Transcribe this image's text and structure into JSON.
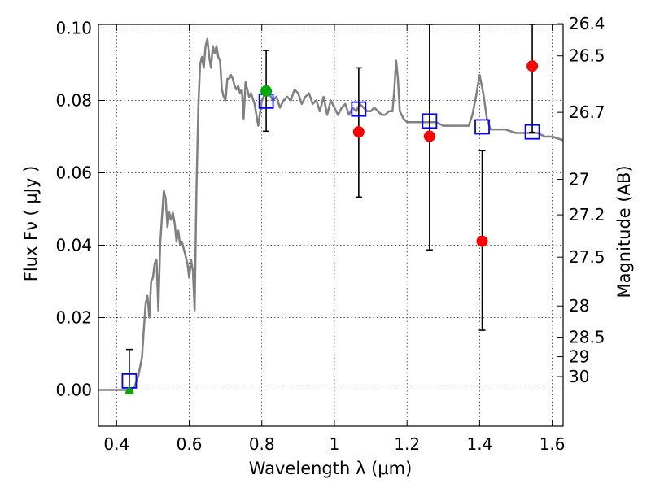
{
  "chart_data": {
    "type": "scatter",
    "xlabel": "Wavelength  λ (μm)",
    "ylabel": "Flux  Fν  ( μJy )",
    "y2label": "Magnitude (AB)",
    "xlim": [
      0.35,
      1.63
    ],
    "ylim": [
      -0.01,
      0.101
    ],
    "grid": true,
    "x_ticks": [
      0.4,
      0.6,
      0.8,
      1.0,
      1.2,
      1.4,
      1.6
    ],
    "x_tick_labels": [
      "0.4",
      "0.6",
      "0.8",
      "1",
      "1.2",
      "1.4",
      "1.6"
    ],
    "y_ticks": [
      0.0,
      0.02,
      0.04,
      0.06,
      0.08,
      0.1
    ],
    "y_tick_labels": [
      "0.00",
      "0.02",
      "0.04",
      "0.06",
      "0.08",
      "0.10"
    ],
    "y2_ticks": [
      {
        "label": "26.4",
        "flux": 0.1012
      },
      {
        "label": "26.5",
        "flux": 0.0923
      },
      {
        "label": "26.7",
        "flux": 0.0767
      },
      {
        "label": "27",
        "flux": 0.0582
      },
      {
        "label": "27.2",
        "flux": 0.0484
      },
      {
        "label": "27.5",
        "flux": 0.0367
      },
      {
        "label": "28",
        "flux": 0.0232
      },
      {
        "label": "28.5",
        "flux": 0.0146
      },
      {
        "label": "29",
        "flux": 0.0092
      },
      {
        "label": "30",
        "flux": 0.0037
      }
    ],
    "series": [
      {
        "type": "line",
        "color": "#808080",
        "points": [
          [
            0.35,
            0.0
          ],
          [
            0.44,
            0.0
          ],
          [
            0.45,
            0.001
          ],
          [
            0.46,
            0.004
          ],
          [
            0.47,
            0.009
          ],
          [
            0.475,
            0.017
          ],
          [
            0.48,
            0.024
          ],
          [
            0.485,
            0.026
          ],
          [
            0.49,
            0.02
          ],
          [
            0.495,
            0.03
          ],
          [
            0.5,
            0.031
          ],
          [
            0.505,
            0.035
          ],
          [
            0.51,
            0.036
          ],
          [
            0.515,
            0.022
          ],
          [
            0.52,
            0.04
          ],
          [
            0.525,
            0.048
          ],
          [
            0.53,
            0.055
          ],
          [
            0.535,
            0.053
          ],
          [
            0.54,
            0.045
          ],
          [
            0.545,
            0.049
          ],
          [
            0.55,
            0.047
          ],
          [
            0.555,
            0.049
          ],
          [
            0.56,
            0.046
          ],
          [
            0.565,
            0.041
          ],
          [
            0.57,
            0.044
          ],
          [
            0.575,
            0.04
          ],
          [
            0.58,
            0.041
          ],
          [
            0.585,
            0.039
          ],
          [
            0.59,
            0.037
          ],
          [
            0.595,
            0.035
          ],
          [
            0.6,
            0.031
          ],
          [
            0.605,
            0.036
          ],
          [
            0.61,
            0.033
          ],
          [
            0.615,
            0.022
          ],
          [
            0.62,
            0.055
          ],
          [
            0.625,
            0.078
          ],
          [
            0.63,
            0.09
          ],
          [
            0.635,
            0.092
          ],
          [
            0.64,
            0.089
          ],
          [
            0.645,
            0.095
          ],
          [
            0.65,
            0.097
          ],
          [
            0.655,
            0.092
          ],
          [
            0.66,
            0.089
          ],
          [
            0.665,
            0.095
          ],
          [
            0.67,
            0.093
          ],
          [
            0.675,
            0.095
          ],
          [
            0.68,
            0.092
          ],
          [
            0.685,
            0.091
          ],
          [
            0.69,
            0.083
          ],
          [
            0.695,
            0.081
          ],
          [
            0.7,
            0.08
          ],
          [
            0.705,
            0.086
          ],
          [
            0.71,
            0.086
          ],
          [
            0.715,
            0.087
          ],
          [
            0.72,
            0.086
          ],
          [
            0.725,
            0.084
          ],
          [
            0.73,
            0.083
          ],
          [
            0.735,
            0.084
          ],
          [
            0.74,
            0.082
          ],
          [
            0.745,
            0.083
          ],
          [
            0.75,
            0.075
          ],
          [
            0.755,
            0.085
          ],
          [
            0.76,
            0.083
          ],
          [
            0.765,
            0.081
          ],
          [
            0.77,
            0.082
          ],
          [
            0.78,
            0.079
          ],
          [
            0.785,
            0.076
          ],
          [
            0.79,
            0.073
          ],
          [
            0.8,
            0.08
          ],
          [
            0.81,
            0.082
          ],
          [
            0.82,
            0.082
          ],
          [
            0.83,
            0.08
          ],
          [
            0.84,
            0.081
          ],
          [
            0.85,
            0.078
          ],
          [
            0.86,
            0.08
          ],
          [
            0.87,
            0.081
          ],
          [
            0.88,
            0.08
          ],
          [
            0.89,
            0.083
          ],
          [
            0.9,
            0.082
          ],
          [
            0.91,
            0.079
          ],
          [
            0.92,
            0.081
          ],
          [
            0.93,
            0.082
          ],
          [
            0.94,
            0.079
          ],
          [
            0.95,
            0.08
          ],
          [
            0.96,
            0.077
          ],
          [
            0.97,
            0.081
          ],
          [
            0.98,
            0.076
          ],
          [
            0.99,
            0.08
          ],
          [
            1.0,
            0.078
          ],
          [
            1.01,
            0.076
          ],
          [
            1.02,
            0.078
          ],
          [
            1.03,
            0.079
          ],
          [
            1.04,
            0.076
          ],
          [
            1.05,
            0.078
          ],
          [
            1.06,
            0.077
          ],
          [
            1.07,
            0.079
          ],
          [
            1.08,
            0.078
          ],
          [
            1.09,
            0.077
          ],
          [
            1.1,
            0.077
          ],
          [
            1.11,
            0.078
          ],
          [
            1.12,
            0.077
          ],
          [
            1.13,
            0.076
          ],
          [
            1.14,
            0.076
          ],
          [
            1.15,
            0.077
          ],
          [
            1.16,
            0.077
          ],
          [
            1.165,
            0.083
          ],
          [
            1.17,
            0.091
          ],
          [
            1.175,
            0.086
          ],
          [
            1.18,
            0.077
          ],
          [
            1.19,
            0.075
          ],
          [
            1.2,
            0.074
          ],
          [
            1.22,
            0.074
          ],
          [
            1.24,
            0.074
          ],
          [
            1.26,
            0.074
          ],
          [
            1.28,
            0.074
          ],
          [
            1.3,
            0.073
          ],
          [
            1.32,
            0.073
          ],
          [
            1.34,
            0.073
          ],
          [
            1.36,
            0.073
          ],
          [
            1.37,
            0.073
          ],
          [
            1.38,
            0.076
          ],
          [
            1.39,
            0.081
          ],
          [
            1.4,
            0.087
          ],
          [
            1.41,
            0.082
          ],
          [
            1.42,
            0.075
          ],
          [
            1.43,
            0.072
          ],
          [
            1.45,
            0.072
          ],
          [
            1.47,
            0.072
          ],
          [
            1.5,
            0.071
          ],
          [
            1.53,
            0.071
          ],
          [
            1.56,
            0.071
          ],
          [
            1.58,
            0.07
          ],
          [
            1.6,
            0.07
          ],
          [
            1.63,
            0.069
          ]
        ]
      },
      {
        "type": "squares",
        "color": "#0000ff",
        "points": [
          [
            0.435,
            0.0025
          ],
          [
            0.812,
            0.0798
          ],
          [
            1.067,
            0.0776
          ],
          [
            1.262,
            0.0743
          ],
          [
            1.407,
            0.0727
          ],
          [
            1.545,
            0.0713
          ]
        ]
      },
      {
        "type": "circles",
        "color": "#ff0000",
        "points": [
          [
            1.067,
            0.0713
          ],
          [
            1.262,
            0.0701
          ],
          [
            1.407,
            0.0411
          ],
          [
            1.545,
            0.0895
          ]
        ]
      },
      {
        "type": "circles",
        "color": "#00aa00",
        "points": [
          [
            0.812,
            0.0826
          ]
        ]
      },
      {
        "type": "triangle",
        "color": "#00aa00",
        "points": [
          [
            0.435,
            0.0
          ]
        ]
      }
    ],
    "errorbars": [
      {
        "x": 0.435,
        "y_low": 0.0,
        "y_high": 0.0112
      },
      {
        "x": 0.812,
        "y_low": 0.0715,
        "y_high": 0.0938
      },
      {
        "x": 1.067,
        "y_low": 0.0533,
        "y_high": 0.089
      },
      {
        "x": 1.262,
        "y_low": 0.0387,
        "y_high": 0.101
      },
      {
        "x": 1.407,
        "y_low": 0.0165,
        "y_high": 0.0661
      },
      {
        "x": 1.545,
        "y_low": 0.0712,
        "y_high": 0.101
      }
    ]
  }
}
